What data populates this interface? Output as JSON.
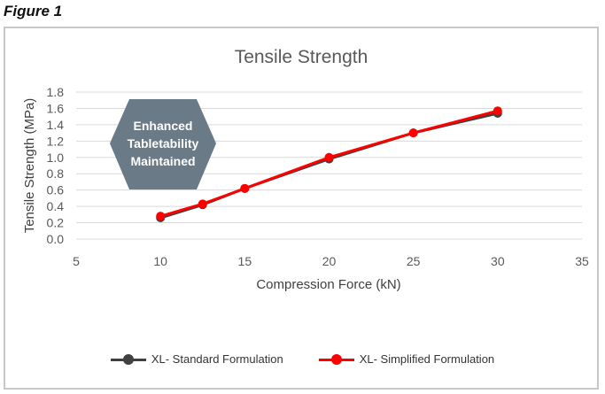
{
  "figure_label": "Figure 1",
  "callout_lines": [
    "Enhanced",
    "Tabletability",
    "Maintained"
  ],
  "colors": {
    "callout_fill": "#6a7a86",
    "grid": "#d9d9d9",
    "axis_text": "#595959"
  },
  "chart_data": {
    "type": "line",
    "title": "Tensile Strength",
    "xlabel": "Compression Force (kN)",
    "ylabel": "Tensile Strength (MPa)",
    "xlim": [
      5,
      35
    ],
    "ylim": [
      0,
      1.8
    ],
    "xticks": [
      5,
      10,
      15,
      20,
      25,
      30,
      35
    ],
    "yticks": [
      "0.0",
      "0.2",
      "0.4",
      "0.6",
      "0.8",
      "1.0",
      "1.2",
      "1.4",
      "1.6",
      "1.8"
    ],
    "grid": "horizontal",
    "legend_position": "bottom",
    "series": [
      {
        "name": "XL- Standard Formulation",
        "color": "#404040",
        "x": [
          10,
          12.5,
          15,
          20,
          25,
          30
        ],
        "y": [
          0.26,
          0.42,
          0.62,
          0.98,
          1.3,
          1.54
        ]
      },
      {
        "name": "XL- Simplified Formulation",
        "color": "#ff0000",
        "x": [
          10,
          12.5,
          15,
          20,
          25,
          30
        ],
        "y": [
          0.28,
          0.43,
          0.62,
          1.0,
          1.3,
          1.57
        ]
      }
    ]
  }
}
